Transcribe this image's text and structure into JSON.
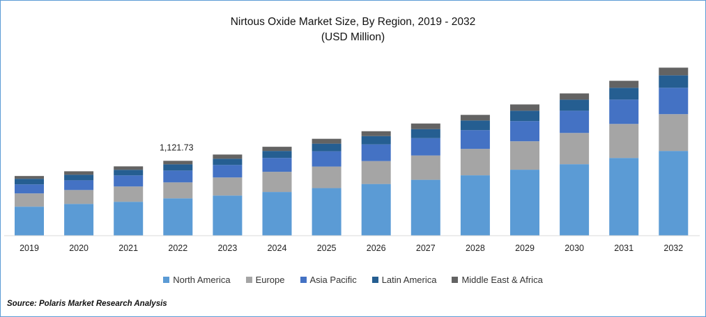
{
  "chart_data": {
    "type": "stacked-bar",
    "title": "Nirtous Oxide Market Size, By Region, 2019 - 2032",
    "subtitle": "(USD Million)",
    "categories": [
      "2019",
      "2020",
      "2021",
      "2022",
      "2023",
      "2024",
      "2025",
      "2026",
      "2027",
      "2028",
      "2029",
      "2030",
      "2031",
      "2032"
    ],
    "series": [
      {
        "name": "North America",
        "color": "#5B9BD5",
        "values": [
          432,
          473,
          505,
          557,
          599,
          653,
          711,
          773,
          836,
          904,
          988,
          1071,
          1165,
          1270
        ]
      },
      {
        "name": "Europe",
        "color": "#A5A5A5",
        "values": [
          199,
          209,
          230,
          240,
          272,
          303,
          324,
          345,
          366,
          397,
          428,
          470,
          512,
          554
        ]
      },
      {
        "name": "Asia Pacific",
        "color": "#4472C4",
        "values": [
          136,
          146,
          167,
          178,
          188,
          209,
          230,
          251,
          261,
          282,
          303,
          334,
          366,
          397
        ]
      },
      {
        "name": "Latin America",
        "color": "#255E91",
        "values": [
          84,
          84,
          84,
          94,
          94,
          105,
          115,
          125,
          136,
          146,
          157,
          167,
          178,
          188
        ]
      },
      {
        "name": "Middle East & Africa",
        "color": "#636363",
        "values": [
          42,
          52,
          52,
          52.73,
          63,
          63,
          73,
          73,
          84,
          84,
          94,
          94,
          105,
          115
        ]
      }
    ],
    "annotations": [
      {
        "category": "2022",
        "text": "1,121.73"
      }
    ],
    "ylim": [
      0,
      2700
    ],
    "grid": false,
    "legend": "bottom"
  },
  "source": "Source: Polaris  Market Research Analysis"
}
